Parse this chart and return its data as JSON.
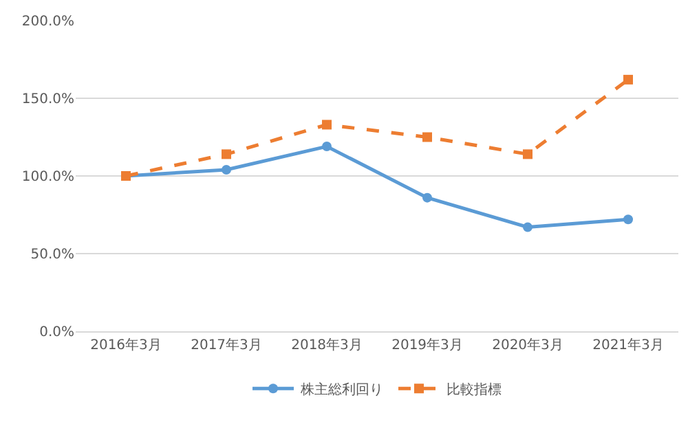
{
  "chart_data": {
    "type": "line",
    "categories": [
      "2016年3月",
      "2017年3月",
      "2018年3月",
      "2019年3月",
      "2020年3月",
      "2021年3月"
    ],
    "series": [
      {
        "name": "株主総利回り",
        "color": "#5b9bd5",
        "values": [
          100,
          104,
          119,
          86,
          67,
          72
        ],
        "marker": "circle",
        "line_style": "solid"
      },
      {
        "name": "比較指標",
        "color": "#ed7d31",
        "values": [
          100,
          114,
          133,
          125,
          114,
          162
        ],
        "marker": "square",
        "line_style": "dashed"
      }
    ],
    "ylim": [
      0,
      200
    ],
    "yticks": [
      {
        "value": 0,
        "label": "0.0%"
      },
      {
        "value": 50,
        "label": "50.0%"
      },
      {
        "value": 100,
        "label": "100.0%"
      },
      {
        "value": 150,
        "label": "150.0%"
      },
      {
        "value": 200,
        "label": "200.0%"
      }
    ],
    "grid": "y",
    "legend": "bottom"
  }
}
